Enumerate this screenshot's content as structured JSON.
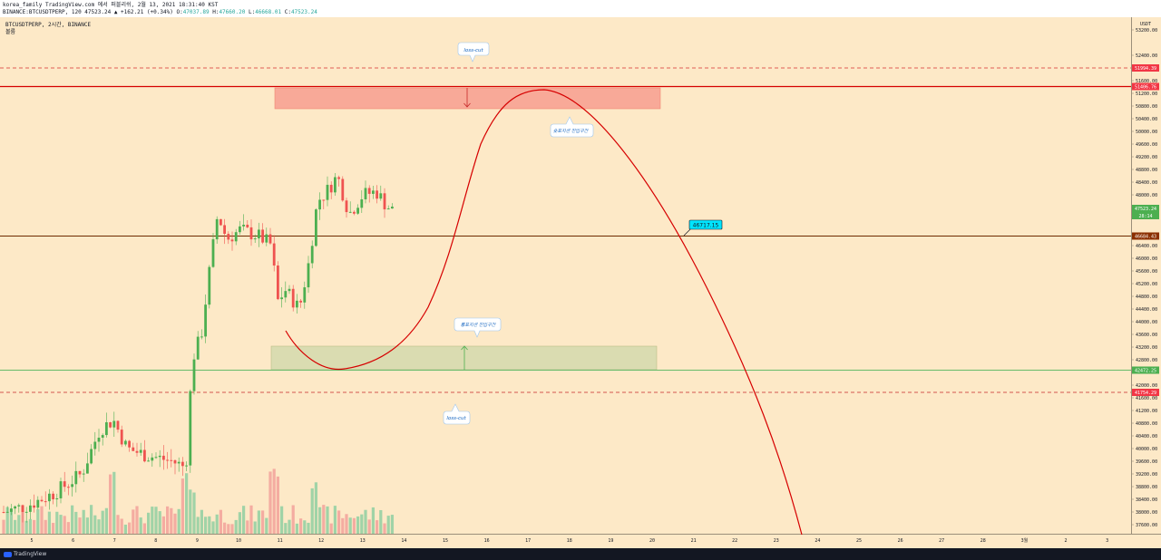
{
  "header": {
    "line1": "korea_family TradingView.com 에서 퍼블리쉬, 2월 13, 2021 18:31:40 KST",
    "line2_prefix": "BINANCE:BTCUSDTPERP, 120 47523.24 ▲ +162.21 (+0.34%) O:",
    "open": "47037.89",
    "high_label": " H:",
    "high": "47660.20",
    "low_label": " L:",
    "low": "46668.01",
    "close_label": " C:",
    "close": "47523.24"
  },
  "chart": {
    "symbol_line": "BTCUSDTPERP, 2시간, BINANCE",
    "volume_label": "볼륨",
    "currency": "USDT",
    "price_ticks": [
      "53200.00",
      "52400.00",
      "51600.00",
      "51200.00",
      "50800.00",
      "50400.00",
      "50000.00",
      "49600.00",
      "49200.00",
      "48800.00",
      "48400.00",
      "48000.00",
      "47600.00",
      "46400.00",
      "46000.00",
      "45600.00",
      "45200.00",
      "44800.00",
      "44400.00",
      "44000.00",
      "43600.00",
      "43200.00",
      "42800.00",
      "42000.00",
      "41600.00",
      "41200.00",
      "40800.00",
      "40400.00",
      "40000.00",
      "39600.00",
      "39200.00",
      "38800.00",
      "38400.00",
      "38000.00",
      "37600.00"
    ],
    "price_labels": [
      {
        "text": "51994.39",
        "color": "#f23645"
      },
      {
        "text": "51406.76",
        "color": "#f23645"
      },
      {
        "text": "47523.24",
        "color": "#4caf50"
      },
      {
        "text": "28:14",
        "color": "#4caf50"
      },
      {
        "text": "46684.43",
        "color": "#8b2f00"
      },
      {
        "text": "42472.25",
        "color": "#4caf50"
      },
      {
        "text": "41754.29",
        "color": "#f23645"
      }
    ],
    "time_labels": [
      "5",
      "6",
      "7",
      "8",
      "9",
      "10",
      "11",
      "12",
      "13",
      "14",
      "15",
      "16",
      "17",
      "18",
      "19",
      "20",
      "21",
      "22",
      "23",
      "24",
      "25",
      "26",
      "27",
      "28",
      "3월",
      "2",
      "3"
    ],
    "annotations": {
      "loss_cut_top": "loss-cut",
      "loss_cut_bottom": "loss-cut",
      "resistance_zone": "숏포지션 진입구간",
      "support_zone": "롱포지션 진입구간",
      "target_price": "46717.15"
    },
    "colors": {
      "background": "#fde9c7",
      "up": "#4caf50",
      "down": "#ef5350",
      "resistance_zone": "#f8a394",
      "support_zone": "#d9dcb0",
      "curve": "#d60000",
      "target_label_bg": "#00e5ff"
    }
  }
}
